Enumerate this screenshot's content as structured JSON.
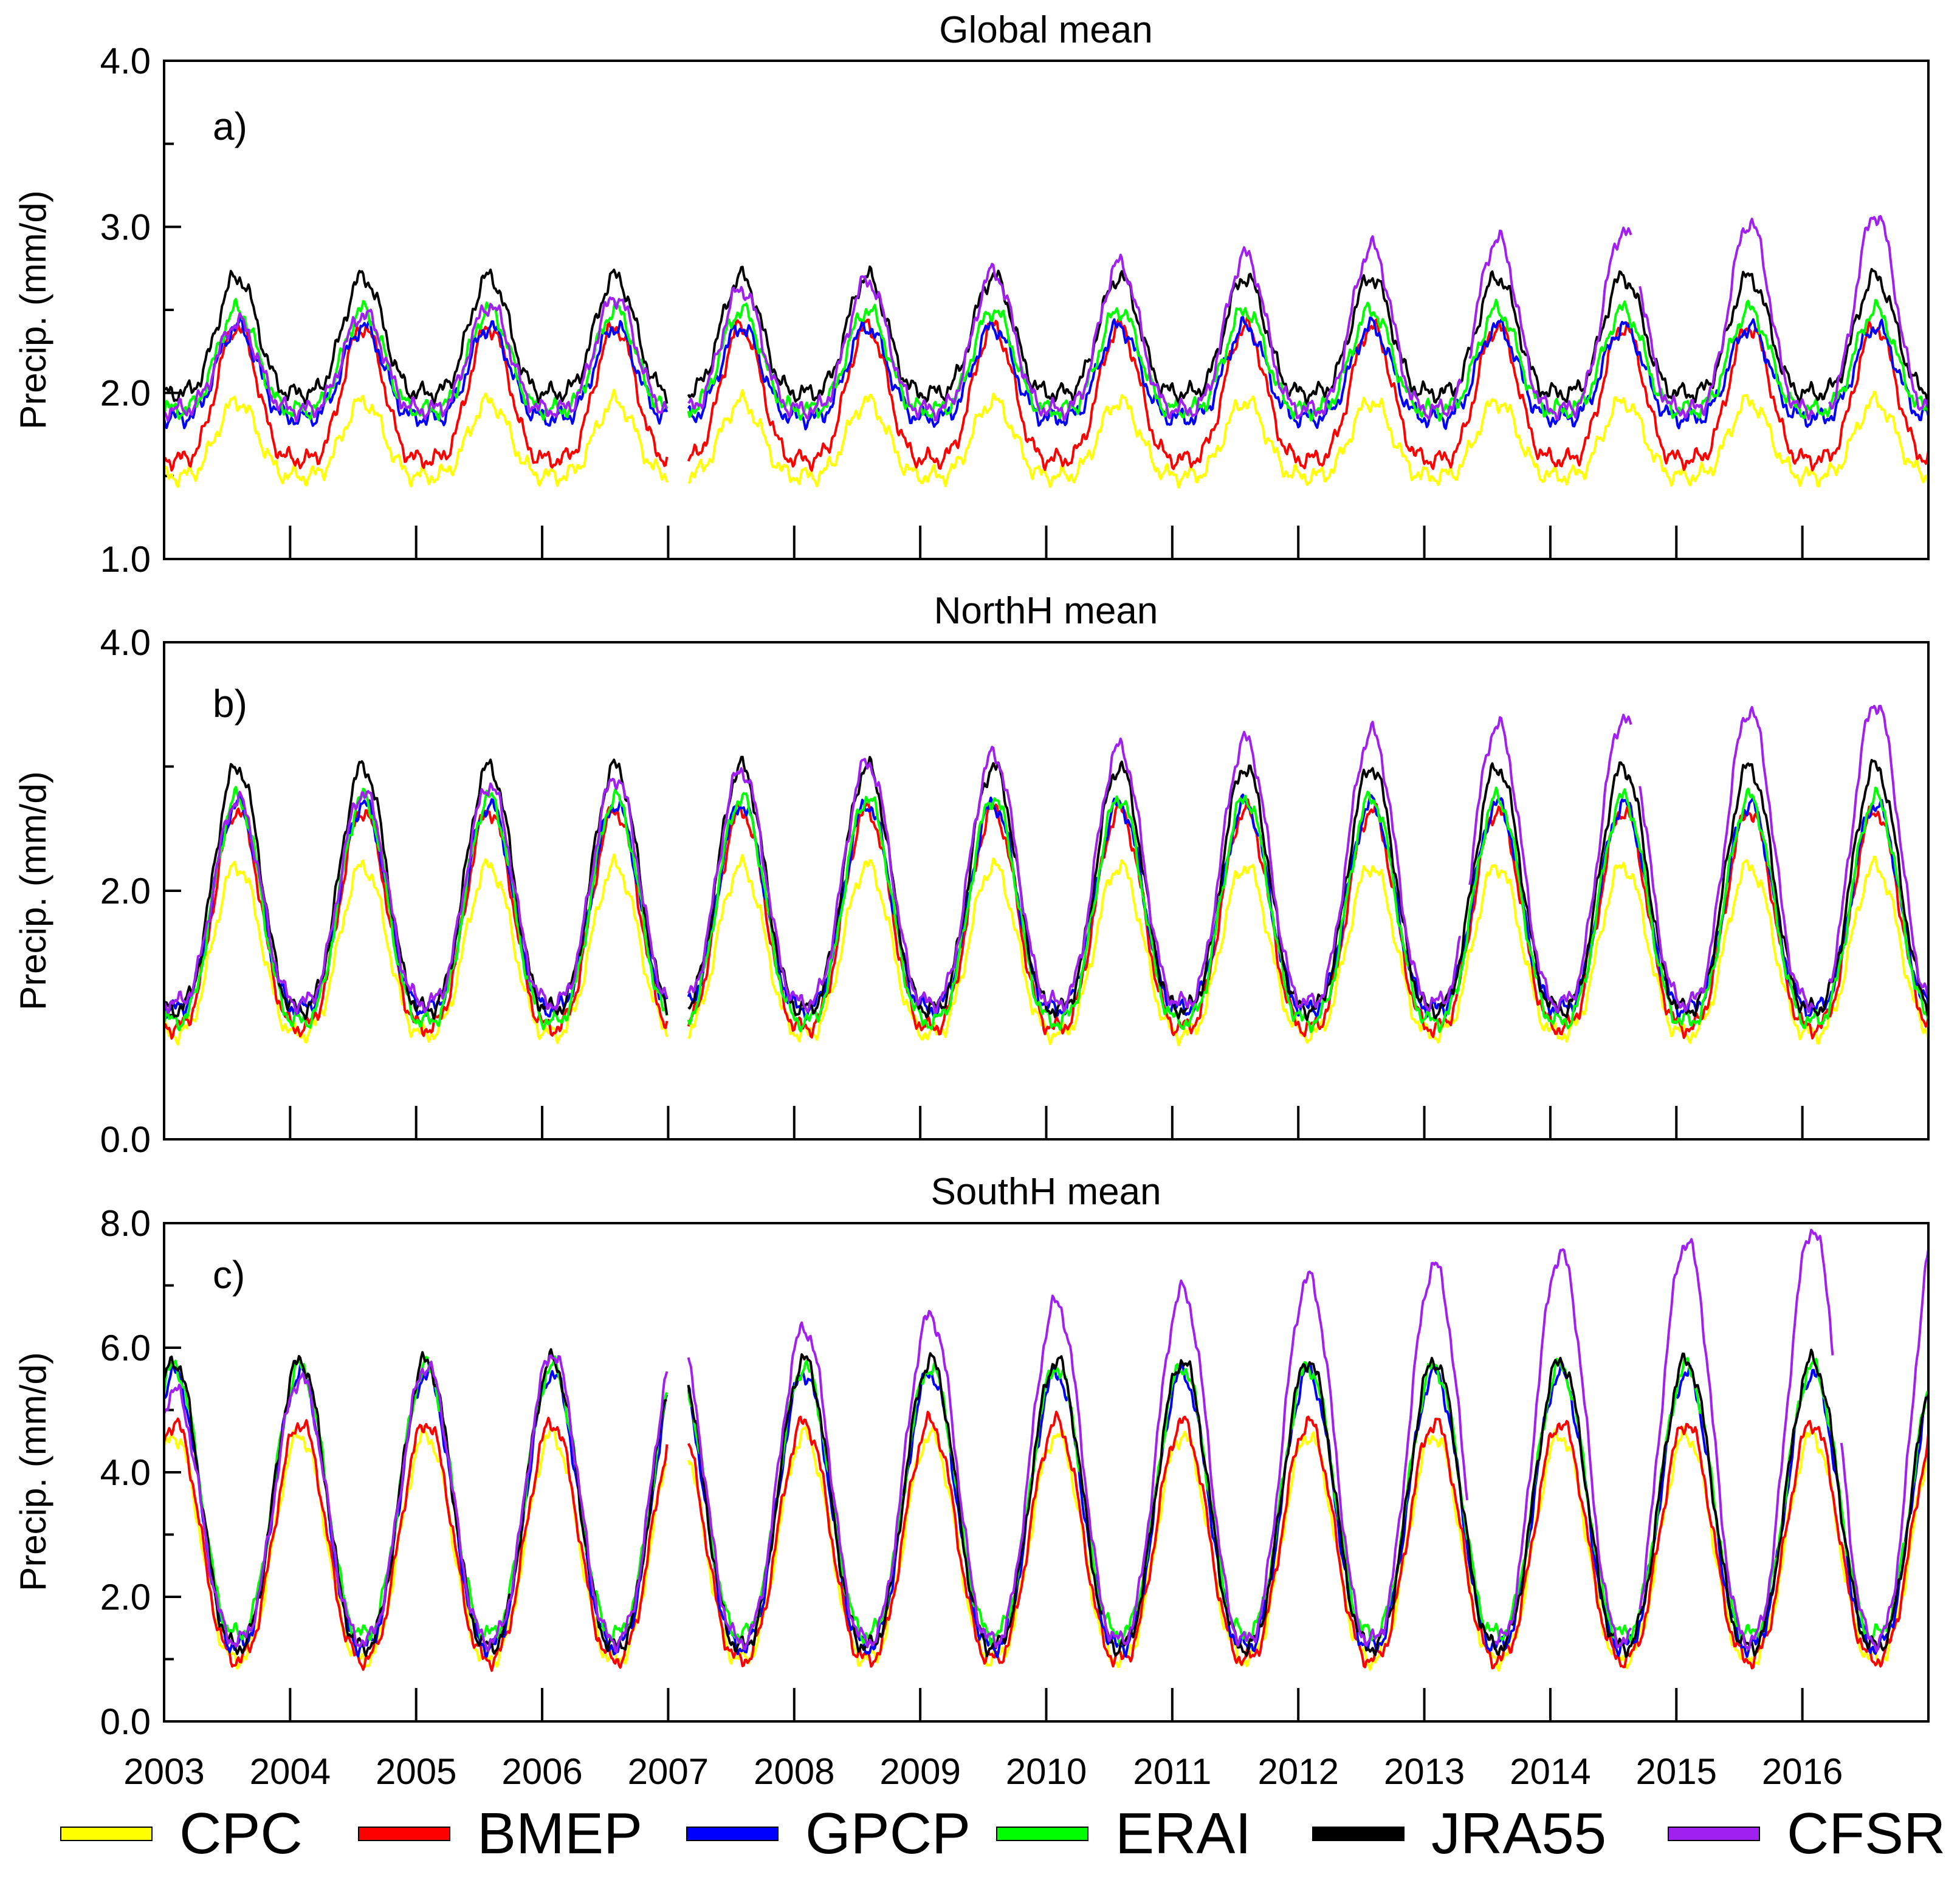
{
  "chart_data": {
    "type": "line",
    "colors": {
      "CPC": "#ffff00",
      "BMEP": "#ff0000",
      "GPCP": "#0000ff",
      "ERAI": "#00ff00",
      "JRA55": "#000000",
      "CFSR": "#a020f0"
    },
    "legend": {
      "position": "bottom",
      "entries": [
        "CPC",
        "BMEP",
        "GPCP",
        "ERAI",
        "JRA55",
        "CFSR"
      ]
    },
    "x": {
      "range": [
        2003.0,
        2017.0
      ],
      "tick_labels": [
        "2003",
        "2004",
        "2005",
        "2006",
        "2007",
        "2008",
        "2009",
        "2010",
        "2011",
        "2012",
        "2013",
        "2014",
        "2015",
        "2016"
      ]
    },
    "panels": [
      {
        "letter": "a)",
        "title": "Global mean",
        "ylabel": "Precip. (mm/d)",
        "ylim": [
          1.0,
          4.0
        ],
        "yticks": [
          "1.0",
          "2.0",
          "3.0",
          "4.0"
        ],
        "ytick_values": [
          1.0,
          2.0,
          3.0,
          4.0
        ],
        "series": [
          {
            "name": "CPC",
            "base": 1.5,
            "amp": 0.45,
            "trend": 0.0,
            "peak": 0.58,
            "sharp": 2.0,
            "gaps": [
              [
                2007.0,
                2007.15
              ]
            ]
          },
          {
            "name": "BMEP",
            "base": 1.6,
            "amp": 0.8,
            "trend": 0.0,
            "peak": 0.58,
            "sharp": 2.0,
            "gaps": [
              [
                2007.0,
                2007.15
              ]
            ]
          },
          {
            "name": "GPCP",
            "base": 1.85,
            "amp": 0.55,
            "trend": 0.0,
            "peak": 0.58,
            "sharp": 2.0,
            "gaps": [
              [
                2007.0,
                2007.15
              ]
            ]
          },
          {
            "name": "ERAI",
            "base": 1.9,
            "amp": 0.6,
            "trend": 0.0,
            "peak": 0.58,
            "sharp": 2.0,
            "gaps": [
              [
                2007.0,
                2007.15
              ]
            ]
          },
          {
            "name": "JRA55",
            "base": 2.0,
            "amp": 0.7,
            "trend": 0.0,
            "peak": 0.58,
            "sharp": 2.0,
            "gaps": [
              [
                2007.0,
                2007.15
              ]
            ]
          },
          {
            "name": "CFSR",
            "base": 1.9,
            "amp": 0.5,
            "trend": 0.05,
            "peak": 0.58,
            "sharp": 2.0,
            "gaps": [
              [
                2007.0,
                2007.15
              ],
              [
                2013.3,
                2013.35
              ],
              [
                2014.65,
                2014.7
              ],
              [
                2016.1,
                2016.2
              ]
            ]
          }
        ]
      },
      {
        "letter": "b)",
        "title": "NorthH mean",
        "ylabel": "Precip. (mm/d)",
        "ylim": [
          0.0,
          4.0
        ],
        "yticks": [
          "0.0",
          "2.0",
          "4.0"
        ],
        "ytick_values": [
          0.0,
          2.0,
          4.0
        ],
        "series": [
          {
            "name": "CPC",
            "base": 0.85,
            "amp": 1.35,
            "trend": 0.0,
            "peak": 0.58,
            "sharp": 1.5,
            "gaps": [
              [
                2007.0,
                2007.15
              ]
            ]
          },
          {
            "name": "BMEP",
            "base": 0.9,
            "amp": 1.75,
            "trend": 0.0,
            "peak": 0.58,
            "sharp": 1.5,
            "gaps": [
              [
                2007.0,
                2007.15
              ]
            ]
          },
          {
            "name": "GPCP",
            "base": 1.05,
            "amp": 1.65,
            "trend": 0.0,
            "peak": 0.58,
            "sharp": 1.5,
            "gaps": [
              [
                2007.0,
                2007.15
              ]
            ]
          },
          {
            "name": "ERAI",
            "base": 0.95,
            "amp": 1.8,
            "trend": 0.0,
            "peak": 0.58,
            "sharp": 1.5,
            "gaps": [
              [
                2007.0,
                2007.15
              ]
            ]
          },
          {
            "name": "JRA55",
            "base": 1.05,
            "amp": 1.95,
            "trend": 0.0,
            "peak": 0.58,
            "sharp": 1.5,
            "gaps": [
              [
                2007.0,
                2007.15
              ]
            ]
          },
          {
            "name": "CFSR",
            "base": 1.1,
            "amp": 1.6,
            "trend": 0.06,
            "peak": 0.58,
            "sharp": 1.5,
            "gaps": [
              [
                2007.0,
                2007.15
              ],
              [
                2013.3,
                2013.35
              ],
              [
                2014.65,
                2014.7
              ],
              [
                2016.1,
                2016.2
              ]
            ]
          }
        ]
      },
      {
        "letter": "c)",
        "title": "SouthH mean",
        "ylabel": "Precip. (mm/d)",
        "ylim": [
          0.0,
          8.0
        ],
        "yticks": [
          "0.0",
          "2.0",
          "4.0",
          "6.0",
          "8.0"
        ],
        "ytick_values": [
          0.0,
          2.0,
          4.0,
          6.0,
          8.0
        ],
        "series": [
          {
            "name": "CPC",
            "base": 1.0,
            "amp": 3.6,
            "trend": 0.0,
            "peak": 0.08,
            "sharp": 1.3,
            "gaps": [
              [
                2007.0,
                2007.15
              ]
            ]
          },
          {
            "name": "BMEP",
            "base": 1.0,
            "amp": 3.8,
            "trend": 0.0,
            "peak": 0.08,
            "sharp": 1.3,
            "gaps": [
              [
                2007.0,
                2007.15
              ]
            ]
          },
          {
            "name": "GPCP",
            "base": 1.2,
            "amp": 4.4,
            "trend": 0.0,
            "peak": 0.08,
            "sharp": 1.3,
            "gaps": [
              [
                2007.0,
                2007.15
              ]
            ]
          },
          {
            "name": "ERAI",
            "base": 1.4,
            "amp": 4.3,
            "trend": 0.0,
            "peak": 0.08,
            "sharp": 1.3,
            "gaps": [
              [
                2007.0,
                2007.15
              ]
            ]
          },
          {
            "name": "JRA55",
            "base": 1.2,
            "amp": 4.6,
            "trend": 0.0,
            "peak": 0.08,
            "sharp": 1.3,
            "gaps": [
              [
                2007.0,
                2007.15
              ]
            ]
          },
          {
            "name": "CFSR",
            "base": 1.3,
            "amp": 4.0,
            "trend": 0.2,
            "peak": 0.08,
            "sharp": 1.3,
            "gaps": [
              [
                2007.0,
                2007.15
              ],
              [
                2013.35,
                2013.55
              ],
              [
                2014.65,
                2014.7
              ],
              [
                2016.25,
                2016.3
              ]
            ]
          }
        ]
      }
    ]
  }
}
